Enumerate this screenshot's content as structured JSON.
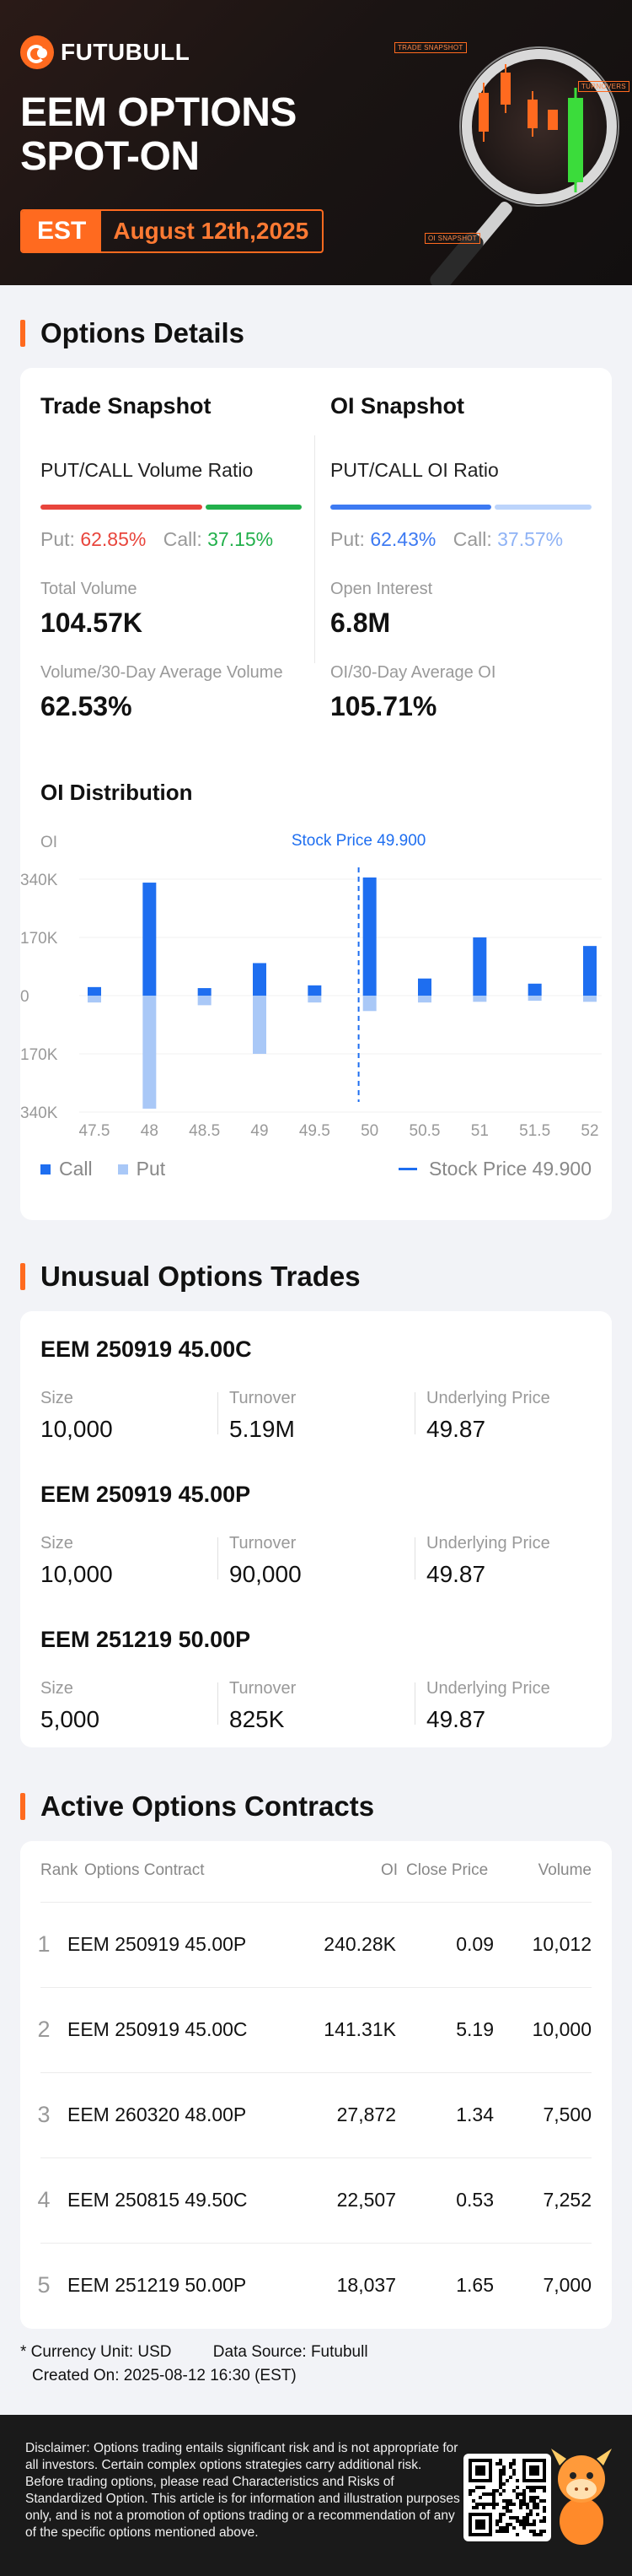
{
  "header": {
    "brand": "FUTUBULL",
    "title_line1": "EEM OPTIONS",
    "title_line2": "SPOT-ON",
    "timezone": "EST",
    "date": "August 12th,2025",
    "chips": [
      "TRADE SNAPSHOT",
      "TURNOVERS",
      "OI SNAPSHOT"
    ]
  },
  "options_details": {
    "section_title": "Options Details",
    "trade": {
      "title": "Trade Snapshot",
      "ratio_label": "PUT/CALL Volume Ratio",
      "put_label": "Put:",
      "put_pct": "62.85%",
      "put_frac": 0.6285,
      "call_label": "Call:",
      "call_pct": "37.15%",
      "vol_label": "Total Volume",
      "vol_value": "104.57K",
      "avg_label": "Volume/30-Day Average Volume",
      "avg_value": "62.53%"
    },
    "oi": {
      "title": "OI Snapshot",
      "ratio_label": "PUT/CALL OI Ratio",
      "put_label": "Put:",
      "put_pct": "62.43%",
      "put_frac": 0.6243,
      "call_label": "Call:",
      "call_pct": "37.57%",
      "oi_label": "Open Interest",
      "oi_value": "6.8M",
      "avg_label": "OI/30-Day Average OI",
      "avg_value": "105.71%"
    },
    "colors": {
      "put": "#e8453c",
      "call": "#22b04b",
      "oi_put": "#3d7af2",
      "oi_call": "#bcd4fb"
    }
  },
  "chart_data": {
    "type": "bar",
    "title": "OI Distribution",
    "ylabel": "OI",
    "stock_price_label": "Stock Price 49.900",
    "stock_price": 49.9,
    "categories": [
      "47.5",
      "48",
      "48.5",
      "49",
      "49.5",
      "50",
      "50.5",
      "51",
      "51.5",
      "52"
    ],
    "series": [
      {
        "name": "Call",
        "values": [
          25000,
          330000,
          22000,
          95000,
          30000,
          345000,
          50000,
          170000,
          35000,
          145000
        ]
      },
      {
        "name": "Put",
        "values": [
          20000,
          330000,
          28000,
          170000,
          20000,
          45000,
          20000,
          18000,
          15000,
          18000
        ]
      }
    ],
    "y_ticks": [
      "340K",
      "170K",
      "0",
      "170K",
      "340K"
    ],
    "ylim": [
      -340000,
      340000
    ],
    "legend": {
      "call": "Call",
      "put": "Put",
      "line": "Stock Price 49.900"
    },
    "colors": {
      "call": "#1e6ef0",
      "put": "#a9c8f7",
      "line": "#1e6ef0"
    }
  },
  "unusual": {
    "section_title": "Unusual Options Trades",
    "trades": [
      {
        "name": "EEM 250919 45.00C",
        "size_label": "Size",
        "size": "10,000",
        "turnover_label": "Turnover",
        "turnover": "5.19M",
        "price_label": "Underlying Price",
        "price": "49.87"
      },
      {
        "name": "EEM 250919 45.00P",
        "size_label": "Size",
        "size": "10,000",
        "turnover_label": "Turnover",
        "turnover": "90,000",
        "price_label": "Underlying Price",
        "price": "49.87"
      },
      {
        "name": "EEM 251219 50.00P",
        "size_label": "Size",
        "size": "5,000",
        "turnover_label": "Turnover",
        "turnover": "825K",
        "price_label": "Underlying Price",
        "price": "49.87"
      }
    ]
  },
  "active": {
    "section_title": "Active Options Contracts",
    "headers": {
      "rank": "Rank",
      "contract": "Options Contract",
      "oi": "OI",
      "close": "Close Price",
      "volume": "Volume"
    },
    "rows": [
      {
        "rank": "1",
        "contract": "EEM 250919 45.00P",
        "oi": "240.28K",
        "close": "0.09",
        "volume": "10,012"
      },
      {
        "rank": "2",
        "contract": "EEM 250919 45.00C",
        "oi": "141.31K",
        "close": "5.19",
        "volume": "10,000"
      },
      {
        "rank": "3",
        "contract": "EEM 260320 48.00P",
        "oi": "27,872",
        "close": "1.34",
        "volume": "7,500"
      },
      {
        "rank": "4",
        "contract": "EEM 250815 49.50C",
        "oi": "22,507",
        "close": "0.53",
        "volume": "7,252"
      },
      {
        "rank": "5",
        "contract": "EEM 251219 50.00P",
        "oi": "18,037",
        "close": "1.65",
        "volume": "7,000"
      }
    ]
  },
  "footer": {
    "currency": "* Currency Unit: USD",
    "source": "Data Source: Futubull",
    "created": "Created On: 2025-08-12 16:30 (EST)",
    "disclaimer": "Disclaimer: Options trading entails significant risk and is not appropriate for all investors. Certain complex options strategies carry additional risk. Before trading options, please read Characteristics and Risks of Standardized Option. This article is for information and illustration purposes only, and is not a promotion of options trading or a recommendation of any of the specific options mentioned above."
  }
}
